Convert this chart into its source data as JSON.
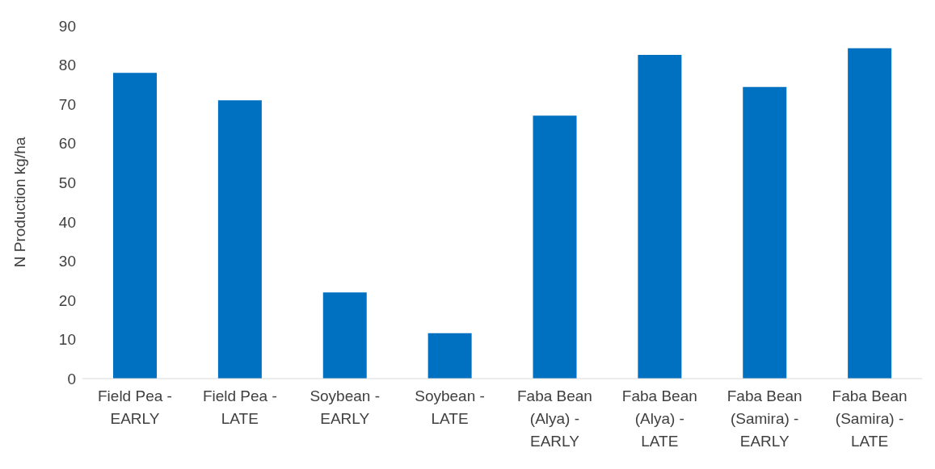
{
  "chart_data": {
    "type": "bar",
    "ylabel": "N Production  kg/ha",
    "categories": [
      "Field Pea - EARLY",
      "Field Pea - LATE",
      "Soybean - EARLY",
      "Soybean - LATE",
      "Faba Bean (Alya) - EARLY",
      "Faba Bean (Alya) - LATE",
      "Faba Bean (Samira) - EARLY",
      "Faba Bean (Samira) - LATE"
    ],
    "values": [
      78,
      71,
      22,
      11.6,
      67.1,
      82.6,
      74.4,
      84.3
    ],
    "color": "#0070c0",
    "ylim": [
      0,
      90
    ],
    "yticks": [
      0,
      10,
      20,
      30,
      40,
      50,
      60,
      70,
      80,
      90
    ],
    "grid": false,
    "legend": false
  }
}
